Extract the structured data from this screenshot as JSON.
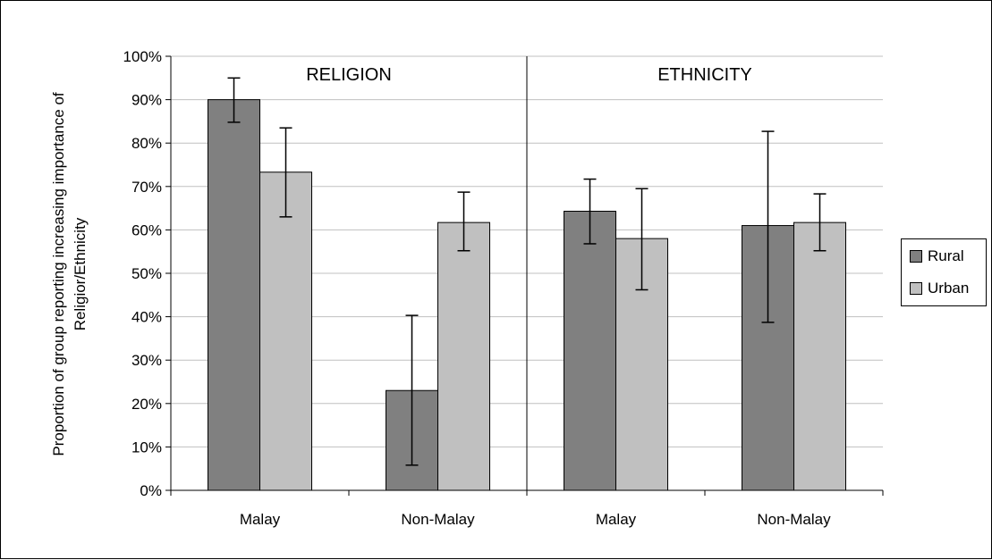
{
  "colors": {
    "Rural": "#808080",
    "Urban": "#c0c0c0",
    "grid": "#c0c0c0"
  },
  "chart_data": {
    "type": "bar",
    "title": "",
    "ylabel": "Proportion of group reporting increasing importance of Religior/Ethnicity",
    "ylabel_lines": [
      "Proportion of group reporting increasing importance of",
      "Religior/Ethnicity"
    ],
    "xlabel": "",
    "ylim": [
      0,
      100
    ],
    "yticks": [
      "0%",
      "10%",
      "20%",
      "30%",
      "40%",
      "50%",
      "60%",
      "70%",
      "80%",
      "90%",
      "100%"
    ],
    "grid": true,
    "legend_position": "right",
    "panels": [
      "RELIGION",
      "ETHNICITY"
    ],
    "categories": [
      "Malay",
      "Non-Malay",
      "Malay",
      "Non-Malay"
    ],
    "series": [
      {
        "name": "Rural",
        "values": [
          90,
          23,
          64.3,
          61
        ],
        "error_low": [
          84.8,
          5.8,
          56.8,
          38.7
        ],
        "error_high": [
          95,
          40.3,
          71.7,
          82.7
        ]
      },
      {
        "name": "Urban",
        "values": [
          73.3,
          61.7,
          58,
          61.7
        ],
        "error_low": [
          63,
          55.2,
          46.2,
          55.2
        ],
        "error_high": [
          83.5,
          68.7,
          69.5,
          68.3
        ]
      }
    ]
  }
}
